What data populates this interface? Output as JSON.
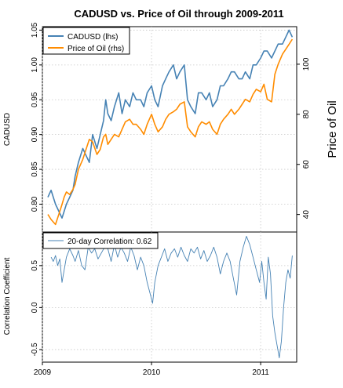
{
  "chart_data": [
    {
      "type": "line",
      "title": "CADUSD vs. Price of Oil through 2009-2011",
      "ylabel": "CADUSD",
      "ylabel_right": "Price of Oil",
      "ylim": [
        0.76,
        1.055
      ],
      "ylim_right": [
        33,
        115
      ],
      "yticks": [
        0.8,
        0.85,
        0.9,
        0.95,
        1.0,
        1.05
      ],
      "yticks_right": [
        40,
        60,
        80,
        100
      ],
      "x_range": [
        2009.0,
        2011.33
      ],
      "grid": true,
      "legend_position": "top-left",
      "series": [
        {
          "name": "CADUSD (lhs)",
          "color": "#4682b4",
          "axis": "left",
          "x": [
            2009.05,
            2009.08,
            2009.12,
            2009.15,
            2009.18,
            2009.2,
            2009.22,
            2009.25,
            2009.28,
            2009.3,
            2009.33,
            2009.37,
            2009.4,
            2009.43,
            2009.46,
            2009.5,
            2009.53,
            2009.56,
            2009.58,
            2009.6,
            2009.63,
            2009.66,
            2009.7,
            2009.73,
            2009.76,
            2009.8,
            2009.83,
            2009.86,
            2009.9,
            2009.93,
            2009.96,
            2010.0,
            2010.03,
            2010.06,
            2010.1,
            2010.13,
            2010.16,
            2010.2,
            2010.23,
            2010.26,
            2010.3,
            2010.33,
            2010.36,
            2010.4,
            2010.43,
            2010.46,
            2010.5,
            2010.53,
            2010.56,
            2010.6,
            2010.63,
            2010.66,
            2010.7,
            2010.73,
            2010.76,
            2010.8,
            2010.83,
            2010.86,
            2010.9,
            2010.93,
            2010.96,
            2011.0,
            2011.03,
            2011.06,
            2011.1,
            2011.13,
            2011.16,
            2011.2,
            2011.23,
            2011.26,
            2011.29
          ],
          "y": [
            0.81,
            0.82,
            0.8,
            0.79,
            0.78,
            0.79,
            0.8,
            0.81,
            0.82,
            0.84,
            0.86,
            0.88,
            0.87,
            0.86,
            0.9,
            0.88,
            0.9,
            0.92,
            0.95,
            0.93,
            0.92,
            0.94,
            0.96,
            0.93,
            0.95,
            0.94,
            0.96,
            0.95,
            0.95,
            0.94,
            0.96,
            0.97,
            0.95,
            0.94,
            0.97,
            0.98,
            0.99,
            1.0,
            0.98,
            0.99,
            1.0,
            0.95,
            0.94,
            0.93,
            0.96,
            0.96,
            0.95,
            0.96,
            0.94,
            0.95,
            0.97,
            0.97,
            0.98,
            0.99,
            0.99,
            0.98,
            0.98,
            0.99,
            0.98,
            1.0,
            1.0,
            1.01,
            1.02,
            1.02,
            1.01,
            1.02,
            1.03,
            1.03,
            1.04,
            1.05,
            1.04
          ]
        },
        {
          "name": "Price of Oil (rhs)",
          "color": "#ff8c00",
          "axis": "right",
          "x": [
            2009.05,
            2009.08,
            2009.12,
            2009.15,
            2009.18,
            2009.2,
            2009.22,
            2009.25,
            2009.28,
            2009.3,
            2009.33,
            2009.37,
            2009.4,
            2009.43,
            2009.46,
            2009.5,
            2009.53,
            2009.56,
            2009.58,
            2009.6,
            2009.63,
            2009.66,
            2009.7,
            2009.73,
            2009.76,
            2009.8,
            2009.83,
            2009.86,
            2009.9,
            2009.93,
            2009.96,
            2010.0,
            2010.03,
            2010.06,
            2010.1,
            2010.13,
            2010.16,
            2010.2,
            2010.23,
            2010.26,
            2010.3,
            2010.33,
            2010.36,
            2010.4,
            2010.43,
            2010.46,
            2010.5,
            2010.53,
            2010.56,
            2010.6,
            2010.63,
            2010.66,
            2010.7,
            2010.73,
            2010.76,
            2010.8,
            2010.83,
            2010.86,
            2010.9,
            2010.93,
            2010.96,
            2011.0,
            2011.03,
            2011.06,
            2011.1,
            2011.13,
            2011.16,
            2011.2,
            2011.23,
            2011.26,
            2011.29
          ],
          "y": [
            40,
            38,
            36,
            40,
            44,
            47,
            49,
            48,
            50,
            52,
            58,
            62,
            66,
            70,
            69,
            64,
            66,
            71,
            72,
            68,
            70,
            72,
            71,
            74,
            77,
            78,
            76,
            76,
            74,
            72,
            76,
            80,
            76,
            73,
            75,
            78,
            80,
            81,
            82,
            84,
            85,
            75,
            73,
            71,
            75,
            77,
            76,
            77,
            74,
            72,
            76,
            78,
            80,
            82,
            80,
            82,
            84,
            86,
            85,
            88,
            90,
            89,
            92,
            86,
            85,
            96,
            100,
            104,
            106,
            108,
            110
          ]
        }
      ]
    },
    {
      "type": "line",
      "ylabel": "Correlation Coefficient",
      "ylim": [
        -0.65,
        0.9
      ],
      "yticks": [
        -0.5,
        0.0,
        0.5
      ],
      "x_range": [
        2009.0,
        2011.33
      ],
      "xticks": [
        2009,
        2010,
        2011
      ],
      "grid": true,
      "legend_position": "top-left",
      "series": [
        {
          "name": "20-day Correlation: 0.62",
          "color": "#4682b4",
          "x": [
            2009.08,
            2009.1,
            2009.12,
            2009.14,
            2009.16,
            2009.18,
            2009.2,
            2009.22,
            2009.25,
            2009.28,
            2009.3,
            2009.33,
            2009.36,
            2009.39,
            2009.42,
            2009.45,
            2009.48,
            2009.51,
            2009.54,
            2009.57,
            2009.6,
            2009.63,
            2009.66,
            2009.69,
            2009.72,
            2009.75,
            2009.78,
            2009.81,
            2009.84,
            2009.87,
            2009.9,
            2009.93,
            2009.96,
            2009.99,
            2010.01,
            2010.03,
            2010.06,
            2010.09,
            2010.12,
            2010.15,
            2010.18,
            2010.21,
            2010.24,
            2010.27,
            2010.3,
            2010.33,
            2010.36,
            2010.39,
            2010.42,
            2010.45,
            2010.48,
            2010.51,
            2010.54,
            2010.57,
            2010.6,
            2010.63,
            2010.66,
            2010.69,
            2010.72,
            2010.75,
            2010.78,
            2010.81,
            2010.84,
            2010.87,
            2010.9,
            2010.93,
            2010.96,
            2010.99,
            2011.01,
            2011.03,
            2011.05,
            2011.07,
            2011.09,
            2011.11,
            2011.13,
            2011.15,
            2011.17,
            2011.19,
            2011.21,
            2011.23,
            2011.25,
            2011.27,
            2011.29
          ],
          "y": [
            0.6,
            0.55,
            0.62,
            0.5,
            0.58,
            0.3,
            0.45,
            0.6,
            0.7,
            0.62,
            0.55,
            0.68,
            0.5,
            0.45,
            0.72,
            0.65,
            0.7,
            0.58,
            0.65,
            0.72,
            0.7,
            0.55,
            0.75,
            0.6,
            0.72,
            0.65,
            0.55,
            0.72,
            0.62,
            0.45,
            0.6,
            0.5,
            0.3,
            0.15,
            0.05,
            0.3,
            0.5,
            0.6,
            0.7,
            0.55,
            0.65,
            0.7,
            0.6,
            0.72,
            0.62,
            0.55,
            0.7,
            0.65,
            0.72,
            0.58,
            0.68,
            0.55,
            0.62,
            0.72,
            0.6,
            0.4,
            0.55,
            0.65,
            0.55,
            0.35,
            0.15,
            0.55,
            0.72,
            0.85,
            0.75,
            0.6,
            0.45,
            0.3,
            0.55,
            0.3,
            0.1,
            0.6,
            0.4,
            -0.1,
            -0.3,
            -0.45,
            -0.6,
            -0.4,
            0.0,
            0.3,
            0.45,
            0.35,
            0.62
          ]
        }
      ]
    }
  ]
}
